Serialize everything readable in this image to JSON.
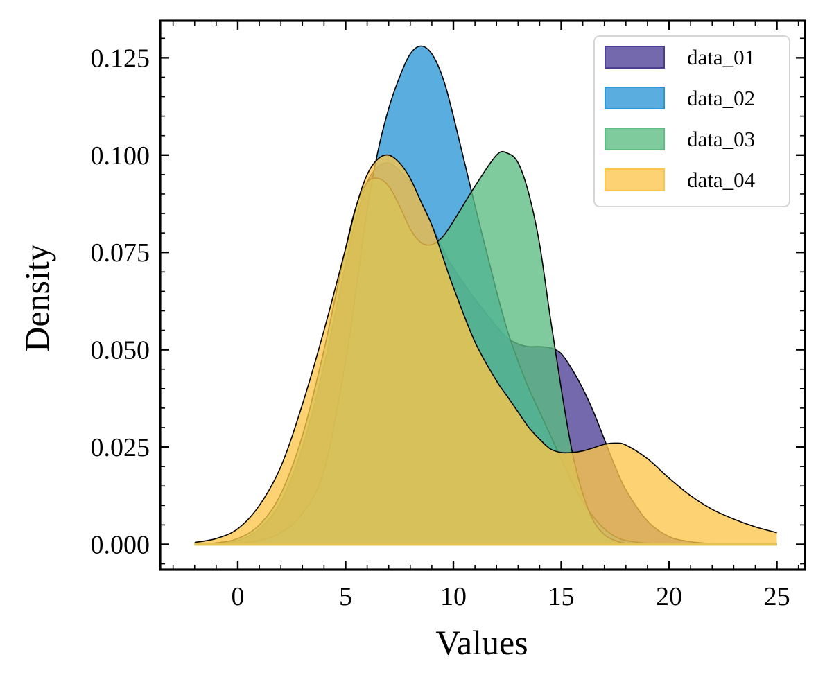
{
  "chart_data": {
    "type": "area",
    "title": "",
    "xlabel": "Values",
    "ylabel": "Density",
    "xlim": [
      -3.6,
      26.3
    ],
    "ylim": [
      -0.0065,
      0.1345
    ],
    "x_ticks": [
      0,
      5,
      10,
      15,
      20,
      25
    ],
    "x_tick_labels": [
      "0",
      "5",
      "10",
      "15",
      "20",
      "25"
    ],
    "y_ticks": [
      0.0,
      0.025,
      0.05,
      0.075,
      0.1,
      0.125
    ],
    "y_tick_labels": [
      "0.000",
      "0.025",
      "0.050",
      "0.075",
      "0.100",
      "0.125"
    ],
    "grid": false,
    "legend_position": "top-right",
    "x": [
      -2,
      -1,
      0,
      1,
      2,
      3,
      4,
      5,
      5.5,
      6,
      6.5,
      7,
      7.5,
      8,
      8.5,
      9,
      9.5,
      10,
      11,
      12,
      12.5,
      13,
      13.5,
      14,
      14.5,
      15,
      15.5,
      16,
      16.5,
      17,
      17.5,
      18,
      19,
      20,
      21,
      22,
      23,
      24,
      25
    ],
    "series": [
      {
        "name": "data_01",
        "color": "#4b3f95",
        "values": [
          0.0001,
          0.0003,
          0.001,
          0.004,
          0.011,
          0.025,
          0.046,
          0.072,
          0.084,
          0.093,
          0.097,
          0.098,
          0.096,
          0.093,
          0.088,
          0.082,
          0.076,
          0.071,
          0.063,
          0.056,
          0.053,
          0.0515,
          0.0508,
          0.0508,
          0.0505,
          0.049,
          0.045,
          0.04,
          0.034,
          0.027,
          0.02,
          0.014,
          0.006,
          0.002,
          0.0007,
          0.0002,
          0.0001,
          0.0,
          0.0
        ]
      },
      {
        "name": "data_02",
        "color": "#2b97d6",
        "values": [
          0.0,
          0.0001,
          0.0003,
          0.001,
          0.003,
          0.008,
          0.019,
          0.047,
          0.066,
          0.086,
          0.101,
          0.112,
          0.12,
          0.126,
          0.128,
          0.126,
          0.12,
          0.11,
          0.087,
          0.065,
          0.055,
          0.047,
          0.04,
          0.034,
          0.028,
          0.022,
          0.016,
          0.011,
          0.007,
          0.004,
          0.002,
          0.001,
          0.0003,
          0.0001,
          0.0,
          0.0,
          0.0,
          0.0,
          0.0
        ]
      },
      {
        "name": "data_03",
        "color": "#5bbd82",
        "values": [
          0.0001,
          0.0004,
          0.0015,
          0.005,
          0.013,
          0.028,
          0.05,
          0.076,
          0.087,
          0.093,
          0.094,
          0.092,
          0.087,
          0.081,
          0.0775,
          0.077,
          0.079,
          0.083,
          0.092,
          0.1,
          0.1005,
          0.098,
          0.09,
          0.077,
          0.058,
          0.04,
          0.024,
          0.013,
          0.006,
          0.0025,
          0.001,
          0.0003,
          0.0,
          0.0,
          0.0,
          0.0,
          0.0,
          0.0,
          0.0
        ]
      },
      {
        "name": "data_04",
        "color": "#fdc54a",
        "values": [
          0.0005,
          0.0015,
          0.004,
          0.01,
          0.02,
          0.036,
          0.055,
          0.076,
          0.087,
          0.095,
          0.099,
          0.1,
          0.098,
          0.094,
          0.088,
          0.082,
          0.074,
          0.066,
          0.052,
          0.042,
          0.038,
          0.034,
          0.03,
          0.027,
          0.0245,
          0.0236,
          0.0236,
          0.024,
          0.0248,
          0.0257,
          0.026,
          0.0255,
          0.022,
          0.017,
          0.0125,
          0.009,
          0.0065,
          0.0045,
          0.003
        ]
      }
    ]
  }
}
